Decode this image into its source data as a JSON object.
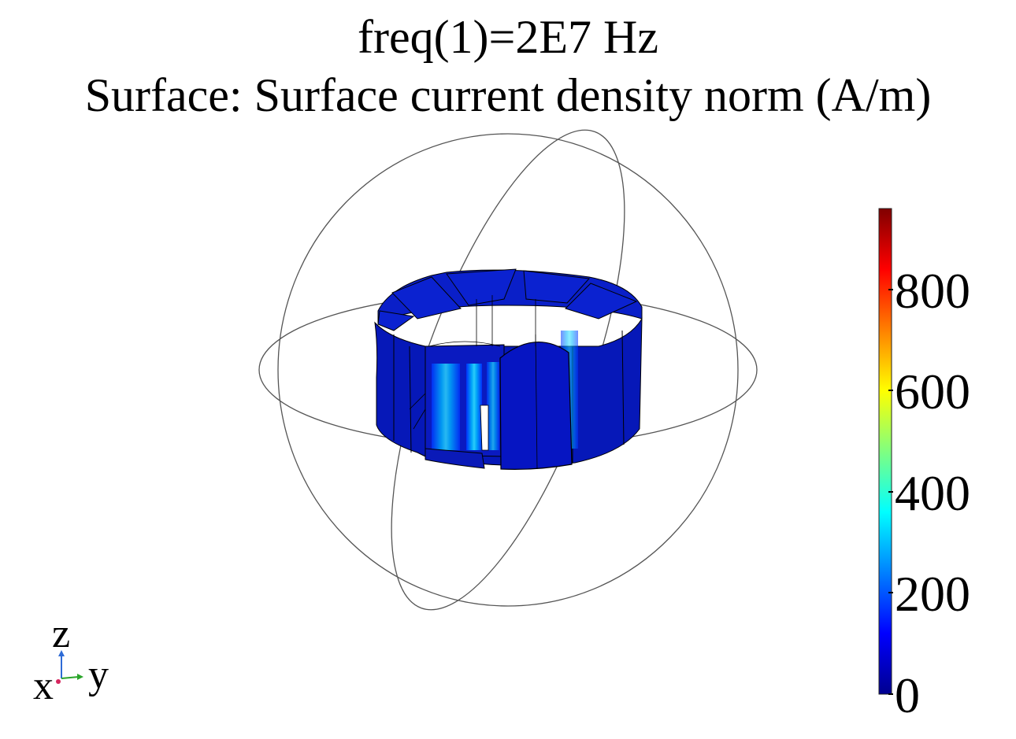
{
  "plot": {
    "title_line1": "freq(1)=2E7 Hz",
    "title_line2": "Surface: Surface current density norm (A/m)"
  },
  "colorbar": {
    "min": 0,
    "max": 960,
    "ticks": [
      {
        "value": 0,
        "label": "0"
      },
      {
        "value": 200,
        "label": "200"
      },
      {
        "value": 400,
        "label": "400"
      },
      {
        "value": 600,
        "label": "600"
      },
      {
        "value": 800,
        "label": "800"
      }
    ],
    "colors": [
      "#00008f",
      "#0000ff",
      "#0080ff",
      "#00ffff",
      "#80ff80",
      "#ffff00",
      "#ff8000",
      "#ff0000",
      "#800000"
    ]
  },
  "triad": {
    "z_label": "z",
    "y_label": "y",
    "x_label": "x",
    "z_color": "#2e6bd6",
    "y_color": "#2aa52a",
    "x_color": "#d6265e"
  },
  "model": {
    "base_color": "#0019c0",
    "segments": 10,
    "wireframe": "sphere"
  }
}
